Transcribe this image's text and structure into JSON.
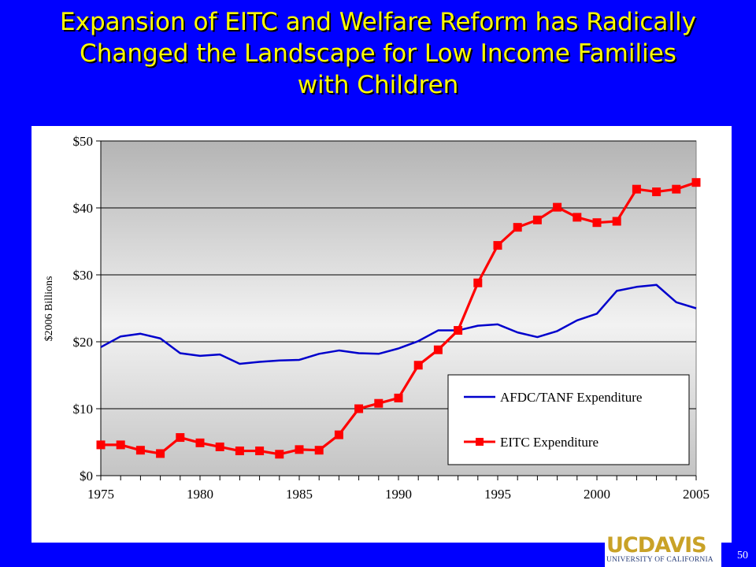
{
  "slide": {
    "title_lines": [
      "Expansion of EITC and Welfare Reform has Radically",
      "Changed the Landscape for Low Income Families",
      "with Children"
    ],
    "page_number": "50",
    "logo_main": "UCDAVIS",
    "logo_sub": "UNIVERSITY OF CALIFORNIA"
  },
  "colors": {
    "background": "#0000ff",
    "title": "#ffff00",
    "afdc_line": "#0000cc",
    "eitc_line": "#ff0000",
    "eitc_marker": "#ff0000",
    "logo_gold": "#c9a227"
  },
  "chart_data": {
    "type": "line",
    "title": "",
    "xlabel": "",
    "ylabel": "$2006 Billions",
    "x": [
      1975,
      1976,
      1977,
      1978,
      1979,
      1980,
      1981,
      1982,
      1983,
      1984,
      1985,
      1986,
      1987,
      1988,
      1989,
      1990,
      1991,
      1992,
      1993,
      1994,
      1995,
      1996,
      1997,
      1998,
      1999,
      2000,
      2001,
      2002,
      2003,
      2004,
      2005
    ],
    "xlim": [
      1975,
      2005
    ],
    "x_ticks": [
      "1975",
      "1980",
      "1985",
      "1990",
      "1995",
      "2000",
      "2005"
    ],
    "ylim": [
      0,
      50
    ],
    "y_ticks": [
      "$0",
      "$10",
      "$20",
      "$30",
      "$40",
      "$50"
    ],
    "grid": "horizontal",
    "legend": "lower-right",
    "series": [
      {
        "name": "AFDC/TANF Expenditure",
        "marker": "none",
        "values": [
          19.2,
          20.8,
          21.2,
          20.5,
          18.3,
          17.9,
          18.1,
          16.7,
          17.0,
          17.2,
          17.3,
          18.2,
          18.7,
          18.3,
          18.2,
          19.0,
          20.1,
          21.7,
          21.7,
          22.4,
          22.6,
          21.4,
          20.7,
          21.6,
          23.2,
          24.2,
          27.6,
          28.2,
          28.5,
          25.9,
          25.0
        ]
      },
      {
        "name": "EITC Expenditure",
        "marker": "square",
        "values": [
          4.6,
          4.6,
          3.8,
          3.3,
          5.7,
          4.9,
          4.3,
          3.7,
          3.7,
          3.2,
          3.9,
          3.8,
          6.1,
          10.0,
          10.8,
          11.6,
          16.5,
          18.8,
          21.7,
          28.8,
          34.4,
          37.1,
          38.2,
          40.1,
          38.6,
          37.8,
          38.0,
          42.8,
          42.4,
          42.8,
          43.8
        ]
      }
    ]
  }
}
